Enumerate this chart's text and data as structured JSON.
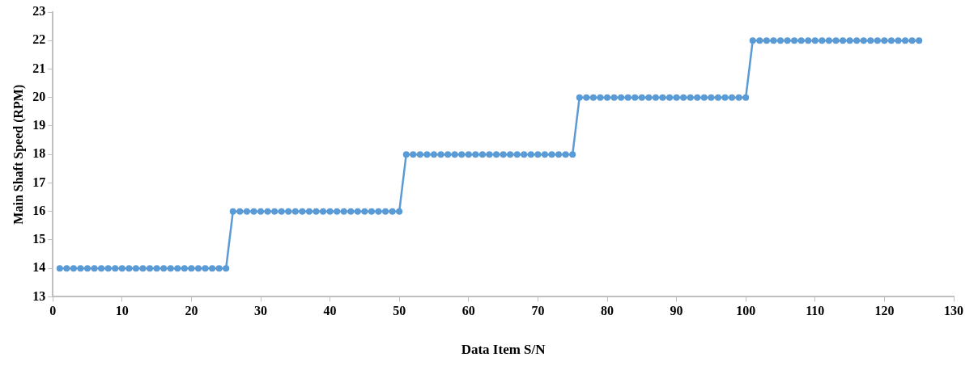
{
  "chart_data": {
    "type": "line",
    "xlabel": "Data Item S/N",
    "ylabel": "Main Shaft Speed (RPM)",
    "marker": "circle",
    "line_style": "solid",
    "grid": false,
    "legend": false,
    "xlim": [
      0,
      130
    ],
    "xticks": [
      0,
      10,
      20,
      30,
      40,
      50,
      60,
      70,
      80,
      90,
      100,
      110,
      120,
      130
    ],
    "ylim": [
      13,
      23
    ],
    "yticks": [
      13,
      14,
      15,
      16,
      17,
      18,
      19,
      20,
      21,
      22,
      23
    ],
    "series": [
      {
        "color": "#5b9bd5",
        "x": [
          1,
          2,
          3,
          4,
          5,
          6,
          7,
          8,
          9,
          10,
          11,
          12,
          13,
          14,
          15,
          16,
          17,
          18,
          19,
          20,
          21,
          22,
          23,
          24,
          25,
          26,
          27,
          28,
          29,
          30,
          31,
          32,
          33,
          34,
          35,
          36,
          37,
          38,
          39,
          40,
          41,
          42,
          43,
          44,
          45,
          46,
          47,
          48,
          49,
          50,
          51,
          52,
          53,
          54,
          55,
          56,
          57,
          58,
          59,
          60,
          61,
          62,
          63,
          64,
          65,
          66,
          67,
          68,
          69,
          70,
          71,
          72,
          73,
          74,
          75,
          76,
          77,
          78,
          79,
          80,
          81,
          82,
          83,
          84,
          85,
          86,
          87,
          88,
          89,
          90,
          91,
          92,
          93,
          94,
          95,
          96,
          97,
          98,
          99,
          100,
          101,
          102,
          103,
          104,
          105,
          106,
          107,
          108,
          109,
          110,
          111,
          112,
          113,
          114,
          115,
          116,
          117,
          118,
          119,
          120,
          121,
          122,
          123,
          124,
          125
        ],
        "values": [
          14,
          14,
          14,
          14,
          14,
          14,
          14,
          14,
          14,
          14,
          14,
          14,
          14,
          14,
          14,
          14,
          14,
          14,
          14,
          14,
          14,
          14,
          14,
          14,
          14,
          16,
          16,
          16,
          16,
          16,
          16,
          16,
          16,
          16,
          16,
          16,
          16,
          16,
          16,
          16,
          16,
          16,
          16,
          16,
          16,
          16,
          16,
          16,
          16,
          16,
          18,
          18,
          18,
          18,
          18,
          18,
          18,
          18,
          18,
          18,
          18,
          18,
          18,
          18,
          18,
          18,
          18,
          18,
          18,
          18,
          18,
          18,
          18,
          18,
          18,
          20,
          20,
          20,
          20,
          20,
          20,
          20,
          20,
          20,
          20,
          20,
          20,
          20,
          20,
          20,
          20,
          20,
          20,
          20,
          20,
          20,
          20,
          20,
          20,
          20,
          22,
          22,
          22,
          22,
          22,
          22,
          22,
          22,
          22,
          22,
          22,
          22,
          22,
          22,
          22,
          22,
          22,
          22,
          22,
          22,
          22,
          22,
          22,
          22,
          22
        ]
      }
    ]
  }
}
